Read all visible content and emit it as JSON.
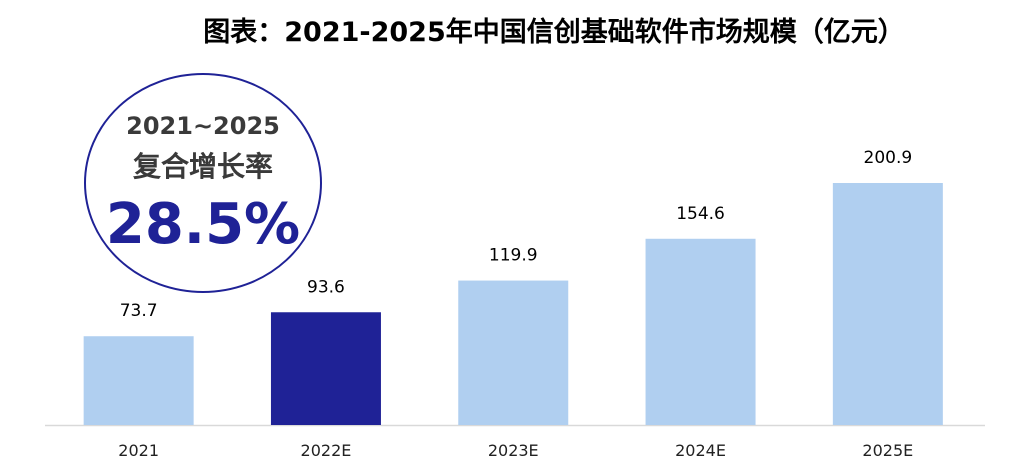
{
  "chart_data": {
    "type": "bar",
    "title": "图表：2021-2025年中国信创基础软件市场规模（亿元）",
    "categories": [
      "2021",
      "2022E",
      "2023E",
      "2024E",
      "2025E"
    ],
    "values": [
      73.7,
      93.6,
      119.9,
      154.6,
      200.9
    ],
    "value_labels": [
      "73.7",
      "93.6",
      "119.9",
      "154.6",
      "200.9"
    ],
    "highlight_index": 1,
    "xlabel": "",
    "ylabel": "",
    "ylim": [
      0,
      200.9
    ],
    "grid": false,
    "colors": {
      "default": "#b0cff0",
      "highlight": "#1f2296",
      "axis": "#d9d9d9"
    },
    "annotation": {
      "line1": "2021~2025",
      "line2": "复合增长率",
      "value": "28.5%"
    }
  }
}
